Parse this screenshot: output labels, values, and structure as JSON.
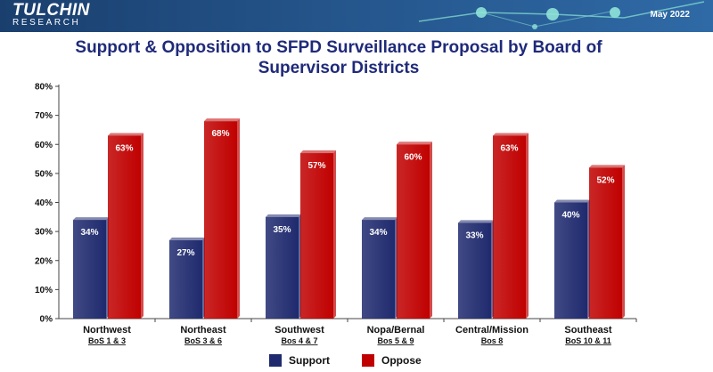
{
  "header": {
    "logo_main": "TULCHIN",
    "logo_sub": "RESEARCH",
    "date": "May 2022"
  },
  "colors": {
    "support": "#1f2a6e",
    "oppose": "#c00000",
    "title": "#1f2a7a"
  },
  "chart_data": {
    "type": "bar",
    "title": "Support & Opposition to SFPD Surveillance Proposal by Board of Supervisor Districts",
    "categories": [
      "Northwest",
      "Northeast",
      "Southwest",
      "Nopa/Bernal",
      "Central/Mission",
      "Southeast"
    ],
    "subcategories": [
      "BoS 1 & 3",
      "BoS 3 & 6",
      "Bos 4 & 7",
      "Bos 5 & 9",
      "Bos 8",
      "BoS 10 & 11"
    ],
    "series": [
      {
        "name": "Support",
        "values": [
          34,
          27,
          35,
          34,
          33,
          40
        ],
        "labels": [
          "34%",
          "27%",
          "35%",
          "34%",
          "33%",
          "40%"
        ]
      },
      {
        "name": "Oppose",
        "values": [
          63,
          68,
          57,
          60,
          63,
          52
        ],
        "labels": [
          "63%",
          "68%",
          "57%",
          "60%",
          "63%",
          "52%"
        ]
      }
    ],
    "ylim": [
      0,
      80
    ],
    "yticks": [
      "0%",
      "10%",
      "20%",
      "30%",
      "40%",
      "50%",
      "60%",
      "70%",
      "80%"
    ],
    "grid": false,
    "legend_position": "bottom"
  }
}
